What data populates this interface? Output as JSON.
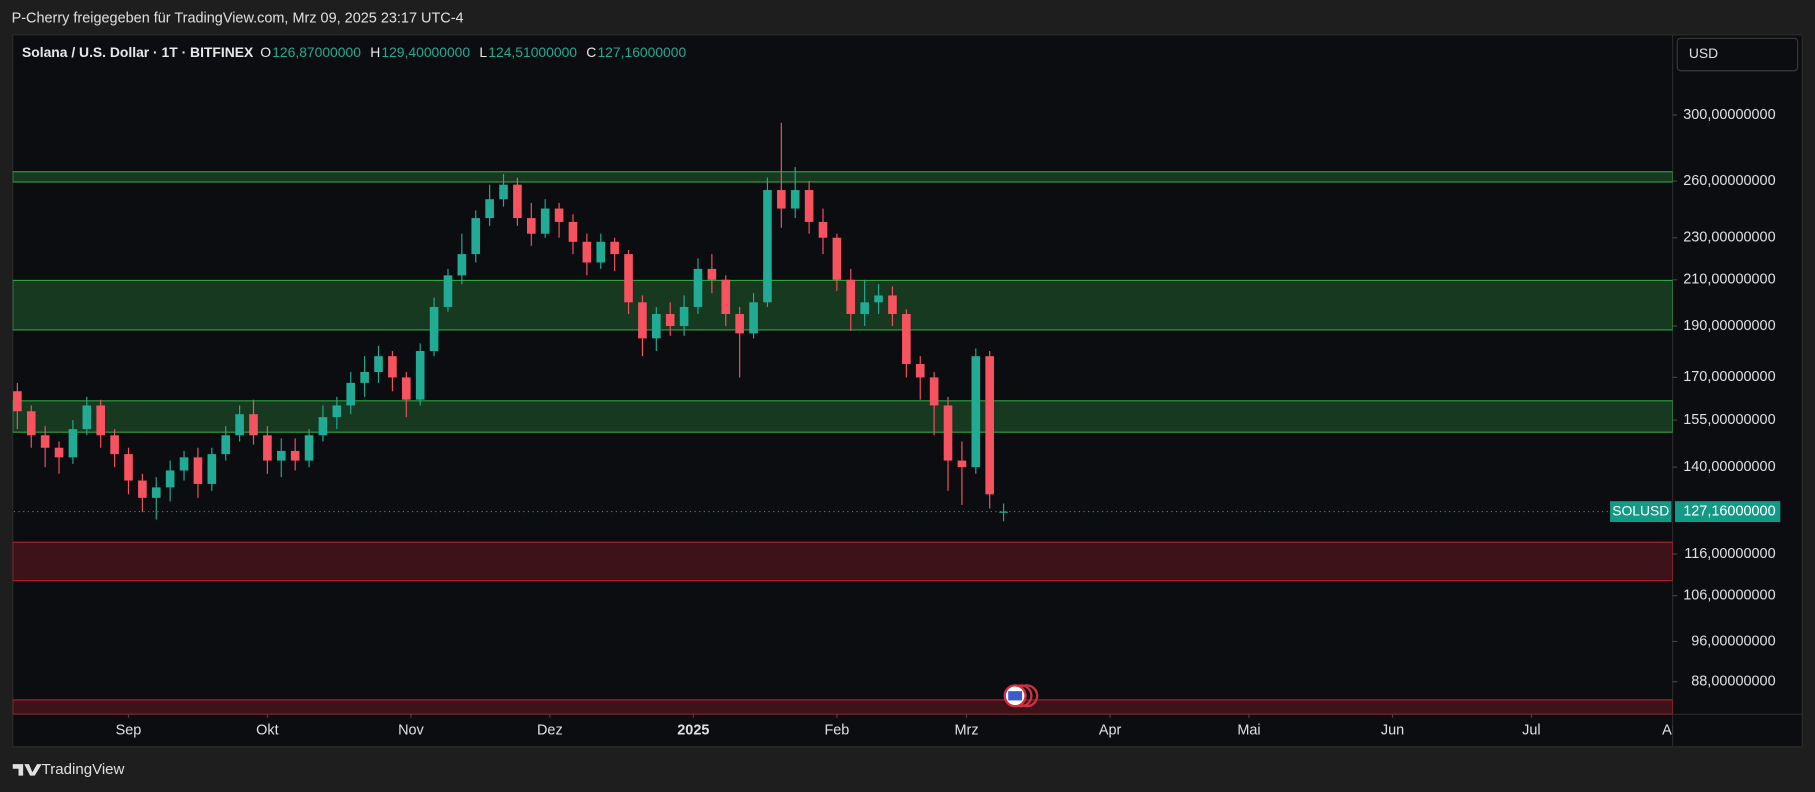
{
  "share_note": "P-Cherry freigegeben für TradingView.com, Mrz 09, 2025 23:17 UTC-4",
  "footer_brand": "TradingView",
  "currency_button": "USD",
  "chart_data": {
    "type": "candlestick",
    "title": "Solana / U.S. Dollar · 1T · BITFINEX",
    "ohlc_header": [
      {
        "key": "O",
        "label": "126,87000000"
      },
      {
        "key": "H",
        "label": "129,40000000"
      },
      {
        "key": "L",
        "label": "124,51000000"
      },
      {
        "key": "C",
        "label": "127,16000000"
      }
    ],
    "y_scale": "log",
    "grid": false,
    "up_color": "#22ab94",
    "down_color": "#f7525f",
    "x": [
      7,
      10,
      13,
      16,
      19,
      22,
      25,
      28,
      31,
      34,
      37,
      40,
      43,
      46,
      49,
      52,
      55,
      58,
      61,
      64,
      67,
      70,
      73,
      76,
      79,
      82,
      85,
      88,
      91,
      94,
      97,
      100,
      103,
      106,
      109,
      112,
      115,
      118,
      121,
      124,
      127,
      130,
      133,
      136,
      139,
      142,
      145,
      148,
      151,
      154,
      157,
      160,
      163,
      166,
      169,
      172,
      175,
      178,
      181,
      184,
      187,
      190,
      193,
      196,
      199,
      202,
      205,
      208,
      211,
      214,
      217,
      220
    ],
    "open": [
      165,
      158,
      150,
      146,
      143,
      152,
      160,
      150,
      144,
      136,
      131,
      134,
      139,
      143,
      135,
      144,
      150,
      157,
      150,
      142,
      145,
      142,
      150,
      156,
      160,
      168,
      172,
      178,
      170,
      162,
      180,
      198,
      212,
      222,
      240,
      250,
      258,
      240,
      232,
      245,
      238,
      228,
      218,
      228,
      222,
      200,
      185,
      195,
      190,
      198,
      215,
      210,
      195,
      187,
      200,
      255,
      245,
      255,
      238,
      230,
      210,
      195,
      200,
      203,
      195,
      175,
      170,
      160,
      142,
      140,
      178,
      126.87
    ],
    "high": [
      168,
      160,
      153,
      148,
      155,
      163,
      162,
      152,
      146,
      138,
      137,
      142,
      145,
      146,
      146,
      153,
      160,
      162,
      153,
      149,
      149,
      152,
      160,
      163,
      172,
      178,
      182,
      180,
      172,
      183,
      202,
      215,
      232,
      244,
      258,
      264,
      262,
      248,
      250,
      248,
      242,
      232,
      232,
      230,
      224,
      203,
      198,
      200,
      203,
      220,
      222,
      212,
      198,
      204,
      262,
      295,
      268,
      260,
      245,
      232,
      215,
      210,
      208,
      207,
      197,
      178,
      172,
      163,
      148,
      181,
      180,
      129.4
    ],
    "low": [
      152,
      146,
      140,
      138,
      141,
      150,
      146,
      140,
      132,
      127,
      125,
      130,
      136,
      131,
      133,
      142,
      148,
      147,
      138,
      137,
      139,
      140,
      148,
      152,
      157,
      163,
      168,
      165,
      156,
      160,
      178,
      196,
      208,
      218,
      236,
      246,
      236,
      226,
      230,
      230,
      222,
      212,
      215,
      214,
      195,
      178,
      180,
      186,
      186,
      195,
      204,
      190,
      170,
      185,
      198,
      235,
      240,
      232,
      222,
      205,
      188,
      190,
      195,
      190,
      170,
      162,
      150,
      133,
      129,
      138,
      128,
      124.51
    ],
    "close": [
      158,
      150,
      146,
      143,
      152,
      160,
      150,
      144,
      136,
      131,
      134,
      139,
      143,
      135,
      144,
      150,
      157,
      150,
      142,
      145,
      142,
      150,
      156,
      160,
      168,
      172,
      178,
      170,
      162,
      180,
      198,
      212,
      222,
      240,
      250,
      258,
      240,
      232,
      245,
      238,
      228,
      218,
      228,
      222,
      200,
      185,
      195,
      190,
      198,
      215,
      210,
      195,
      187,
      200,
      255,
      245,
      255,
      238,
      230,
      210,
      195,
      200,
      203,
      195,
      175,
      170,
      160,
      142,
      140,
      178,
      132,
      127.16
    ],
    "xlim": [
      6.25,
      364.25
    ],
    "xticks": [
      {
        "value": 31,
        "label": "Sep"
      },
      {
        "value": 61,
        "label": "Okt"
      },
      {
        "value": 92,
        "label": "Nov"
      },
      {
        "value": 122,
        "label": "Dez"
      },
      {
        "value": 153,
        "label": "2025"
      },
      {
        "value": 184,
        "label": "Feb"
      },
      {
        "value": 212,
        "label": "Mrz"
      },
      {
        "value": 243,
        "label": "Apr"
      },
      {
        "value": 273,
        "label": "Mai"
      },
      {
        "value": 304,
        "label": "Jun"
      },
      {
        "value": 334,
        "label": "Jul"
      },
      {
        "value": 365,
        "label": "Aug"
      }
    ],
    "ylim": [
      82,
      355
    ],
    "yticks": [
      {
        "value": 300,
        "label": "300,00000000"
      },
      {
        "value": 260,
        "label": "260,00000000"
      },
      {
        "value": 230,
        "label": "230,00000000"
      },
      {
        "value": 210,
        "label": "210,00000000"
      },
      {
        "value": 190,
        "label": "190,00000000"
      },
      {
        "value": 170,
        "label": "170,00000000"
      },
      {
        "value": 155,
        "label": "155,00000000"
      },
      {
        "value": 140,
        "label": "140,00000000"
      },
      {
        "value": 116,
        "label": "116,00000000"
      },
      {
        "value": 106,
        "label": "106,00000000"
      },
      {
        "value": 96,
        "label": "96,00000000"
      },
      {
        "value": 88,
        "label": "88,00000000"
      }
    ],
    "last_price": {
      "symbol": "SOLUSD",
      "value": 127.16,
      "label": "127,16000000",
      "color": "#139a86"
    },
    "zones": [
      {
        "from": 259.5,
        "to": 265.3,
        "color": "#2f9e44"
      },
      {
        "from": 188.4,
        "to": 209.7,
        "color": "#2f9e44"
      },
      {
        "from": 151.0,
        "to": 161.6,
        "color": "#2f9e44"
      },
      {
        "from": 109.5,
        "to": 119.0,
        "color": "#b0202e"
      },
      {
        "from": 82,
        "to": 84.6,
        "color": "#b0202e"
      }
    ]
  }
}
